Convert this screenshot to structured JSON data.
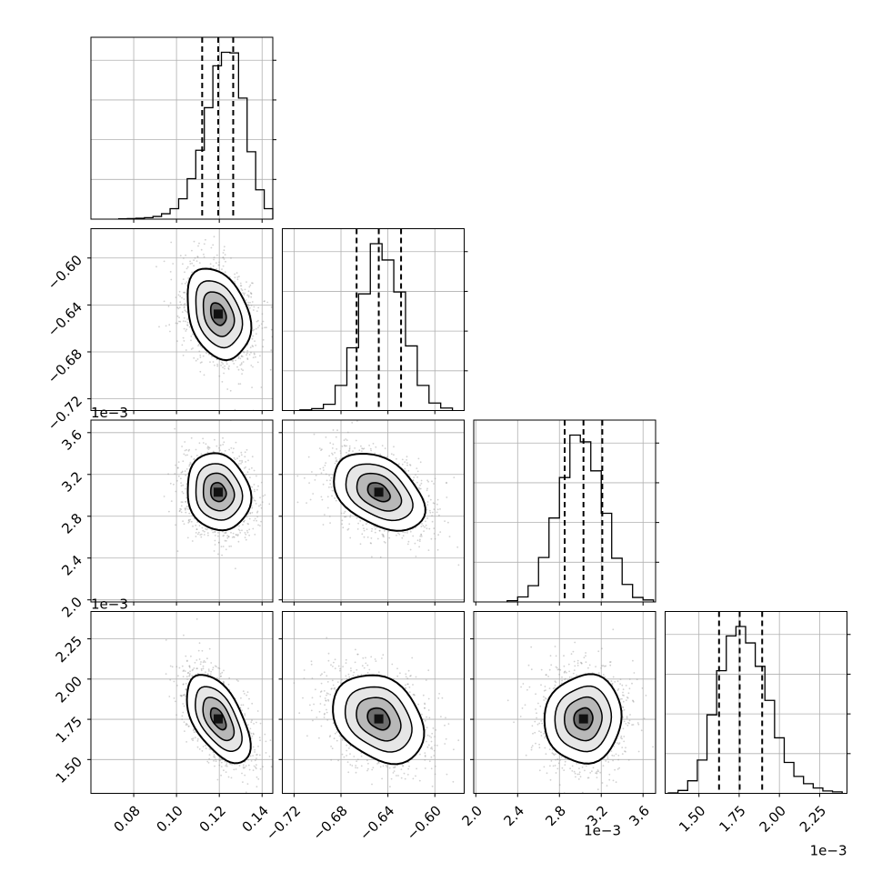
{
  "chart_data": {
    "type": "corner",
    "parameters": [
      {
        "key": "p1",
        "range": [
          0.06,
          0.145
        ],
        "ticks": [
          0.08,
          0.1,
          0.12,
          0.14
        ],
        "tick_labels": [
          "0.08",
          "0.10",
          "0.12",
          "0.14"
        ],
        "offset_label": "",
        "quantiles": [
          0.112,
          0.1195,
          0.1265
        ],
        "hist_bins": [
          0.073,
          0.077,
          0.081,
          0.085,
          0.089,
          0.093,
          0.097,
          0.101,
          0.105,
          0.109,
          0.113,
          0.117,
          0.121,
          0.125,
          0.129,
          0.133,
          0.137,
          0.141,
          0.145
        ],
        "hist_counts": [
          1,
          2,
          3,
          5,
          9,
          18,
          35,
          68,
          135,
          230,
          372,
          512,
          557,
          555,
          404,
          225,
          98,
          35
        ]
      },
      {
        "key": "p2",
        "range": [
          -0.73,
          -0.575
        ],
        "ticks": [
          -0.72,
          -0.68,
          -0.64,
          -0.6
        ],
        "tick_labels": [
          "−0.72",
          "−0.68",
          "−0.64",
          "−0.60"
        ],
        "offset_label": "",
        "quantiles": [
          -0.6667,
          -0.6478,
          -0.6288
        ],
        "hist_bins": [
          -0.715,
          -0.705,
          -0.695,
          -0.685,
          -0.675,
          -0.665,
          -0.655,
          -0.645,
          -0.635,
          -0.625,
          -0.615,
          -0.605,
          -0.595,
          -0.585
        ],
        "hist_counts": [
          2,
          6,
          20,
          80,
          200,
          372,
          532,
          480,
          378,
          206,
          80,
          24,
          8
        ]
      },
      {
        "key": "p3",
        "range": [
          0.00198,
          0.00372
        ],
        "ticks": [
          0.002,
          0.0024,
          0.0028,
          0.0032,
          0.0036
        ],
        "tick_labels": [
          "2.0",
          "2.4",
          "2.8",
          "3.2",
          "3.6"
        ],
        "offset_label": "1e−3",
        "quantiles": [
          0.00285,
          0.00303,
          0.00321
        ],
        "hist_bins": [
          0.0023,
          0.0024,
          0.0025,
          0.0026,
          0.0027,
          0.0028,
          0.0029,
          0.003,
          0.0031,
          0.0032,
          0.0033,
          0.0034,
          0.0035,
          0.0036,
          0.0037
        ],
        "hist_counts": [
          5,
          20,
          65,
          178,
          336,
          498,
          668,
          641,
          525,
          355,
          175,
          70,
          18,
          8
        ]
      },
      {
        "key": "p4",
        "range": [
          0.00129,
          0.00242
        ],
        "ticks": [
          0.0015,
          0.00175,
          0.002,
          0.00225
        ],
        "tick_labels": [
          "1.50",
          "1.75",
          "2.00",
          "2.25"
        ],
        "offset_label": "1e−3",
        "quantiles": [
          0.001625,
          0.001753,
          0.001893
        ],
        "hist_bins": [
          0.00131,
          0.00137,
          0.00143,
          0.00149,
          0.00155,
          0.00161,
          0.00167,
          0.00173,
          0.00179,
          0.00185,
          0.00191,
          0.00197,
          0.00203,
          0.00209,
          0.00215,
          0.00221,
          0.00227,
          0.00233,
          0.00239
        ],
        "hist_counts": [
          2,
          12,
          52,
          138,
          325,
          508,
          652,
          691,
          623,
          526,
          385,
          230,
          128,
          70,
          40,
          22,
          10,
          6
        ]
      }
    ],
    "correlations": {
      "1,0": -0.3,
      "2,0": -0.12,
      "2,1": -0.4,
      "3,0": -0.55,
      "3,1": -0.28,
      "3,2": 0.05
    },
    "y_axis_rows": [
      1,
      2,
      3
    ],
    "grid": true,
    "colors": {
      "line": "#000000",
      "scatter": "#9a9a9a",
      "grid": "#b0b0b0",
      "background": "#ffffff"
    }
  }
}
